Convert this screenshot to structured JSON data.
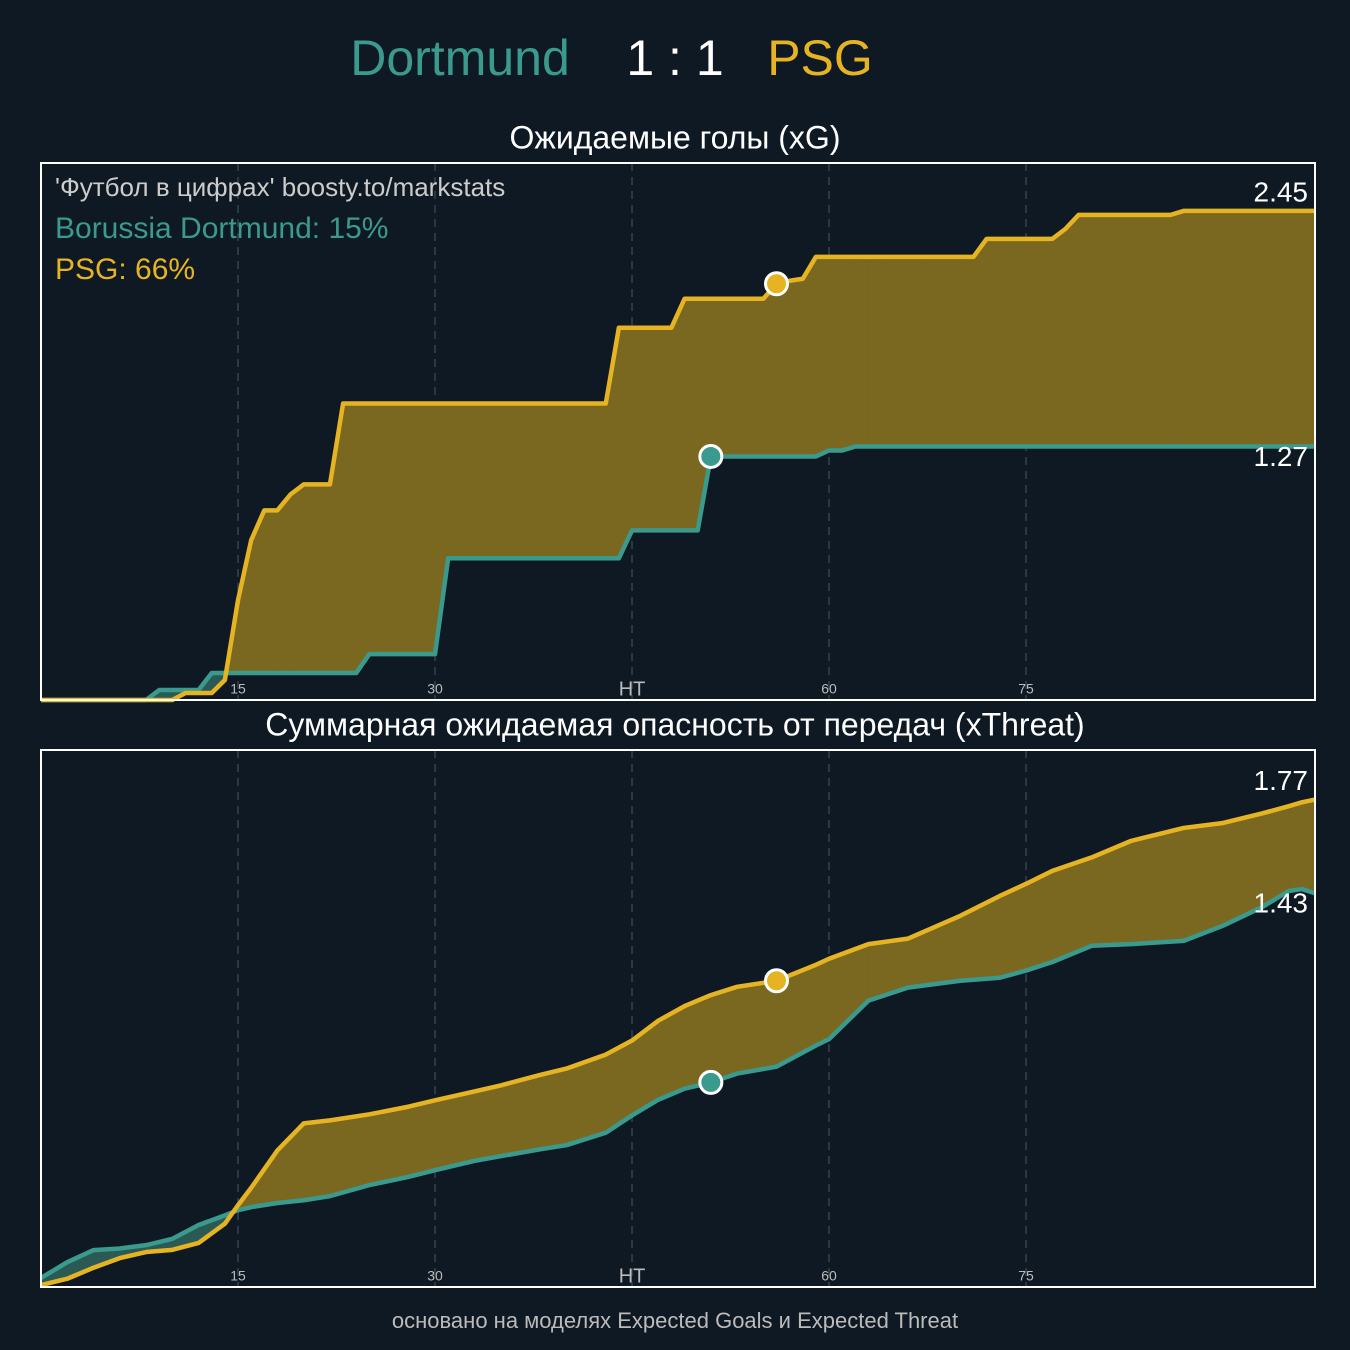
{
  "header": {
    "home": "Dortmund",
    "score": "1 : 1",
    "away": "PSG"
  },
  "footer": "основано на моделях Expected Goals и Expected Threat",
  "chart_data": [
    {
      "type": "line",
      "title": "Ожидаемые голы (xG)",
      "annotation": "'Футбол в цифрах' boosty.to/markstats",
      "xlim": [
        0,
        97
      ],
      "ylim": [
        0,
        2.69
      ],
      "xticks": [
        15,
        30,
        {
          "value": 45,
          "label": "HT"
        },
        60,
        75
      ],
      "grid": true,
      "x": [
        0,
        1,
        2,
        3,
        4,
        5,
        6,
        7,
        8,
        9,
        10,
        11,
        12,
        13,
        14,
        15,
        16,
        17,
        18,
        19,
        20,
        21,
        22,
        23,
        24,
        25,
        26,
        27,
        28,
        29,
        30,
        31,
        32,
        33,
        34,
        35,
        36,
        37,
        38,
        39,
        40,
        41,
        42,
        43,
        44,
        45,
        46,
        47,
        48,
        49,
        50,
        51,
        52,
        53,
        54,
        55,
        56,
        57,
        58,
        59,
        60,
        61,
        62,
        63,
        64,
        65,
        66,
        67,
        68,
        69,
        70,
        71,
        72,
        73,
        74,
        75,
        76,
        77,
        78,
        79,
        80,
        81,
        82,
        83,
        84,
        85,
        86,
        87,
        88,
        89,
        90,
        91,
        92,
        93,
        94,
        95,
        96,
        97
      ],
      "series": [
        {
          "name": "Borussia Dortmund: 15%",
          "color": "#3a9a8e",
          "fill_color": "#2b5a55",
          "values": [
            0,
            0,
            0,
            0,
            0,
            0,
            0,
            0,
            0,
            0.05,
            0.05,
            0.05,
            0.05,
            0.135,
            0.135,
            0.135,
            0.135,
            0.135,
            0.135,
            0.135,
            0.135,
            0.135,
            0.135,
            0.135,
            0.135,
            0.23,
            0.23,
            0.23,
            0.23,
            0.23,
            0.23,
            0.71,
            0.71,
            0.71,
            0.71,
            0.71,
            0.71,
            0.71,
            0.71,
            0.71,
            0.71,
            0.71,
            0.71,
            0.71,
            0.71,
            0.85,
            0.85,
            0.85,
            0.85,
            0.85,
            0.85,
            1.22,
            1.22,
            1.22,
            1.22,
            1.22,
            1.22,
            1.22,
            1.22,
            1.22,
            1.25,
            1.25,
            1.27,
            1.27,
            1.27,
            1.27,
            1.27,
            1.27,
            1.27,
            1.27,
            1.27,
            1.27,
            1.27,
            1.27,
            1.27,
            1.27,
            1.27,
            1.27,
            1.27,
            1.27,
            1.27,
            1.27,
            1.27,
            1.27,
            1.27,
            1.27,
            1.27,
            1.27,
            1.27,
            1.27,
            1.27,
            1.27,
            1.27,
            1.27,
            1.27,
            1.27,
            1.27,
            1.27
          ],
          "goal_x": [
            51
          ],
          "goal_values": [
            1.22
          ]
        },
        {
          "name": "PSG: 66%",
          "color": "#e6b422",
          "fill_color": "#7a6820",
          "values": [
            0,
            0,
            0,
            0,
            0,
            0,
            0,
            0,
            0,
            0,
            0,
            0.035,
            0.035,
            0.035,
            0.1,
            0.5,
            0.8,
            0.95,
            0.95,
            1.03,
            1.08,
            1.08,
            1.08,
            1.485,
            1.485,
            1.485,
            1.485,
            1.485,
            1.485,
            1.485,
            1.485,
            1.485,
            1.485,
            1.485,
            1.485,
            1.485,
            1.485,
            1.485,
            1.485,
            1.485,
            1.485,
            1.485,
            1.485,
            1.485,
            1.865,
            1.865,
            1.865,
            1.865,
            1.865,
            2.01,
            2.01,
            2.01,
            2.01,
            2.01,
            2.01,
            2.01,
            2.085,
            2.1,
            2.11,
            2.22,
            2.22,
            2.22,
            2.22,
            2.22,
            2.22,
            2.22,
            2.22,
            2.22,
            2.22,
            2.22,
            2.22,
            2.22,
            2.31,
            2.31,
            2.31,
            2.31,
            2.31,
            2.31,
            2.36,
            2.43,
            2.43,
            2.43,
            2.43,
            2.43,
            2.43,
            2.43,
            2.43,
            2.45,
            2.45,
            2.45,
            2.45,
            2.45,
            2.45,
            2.45,
            2.45,
            2.45,
            2.45,
            2.45
          ],
          "goal_x": [
            56
          ],
          "goal_values": [
            2.085
          ]
        }
      ]
    },
    {
      "type": "line",
      "title": "Суммарная ожидаемая опасность от передач (xThreat)",
      "xlim": [
        0,
        97
      ],
      "ylim": [
        0,
        1.95
      ],
      "xticks": [
        15,
        30,
        {
          "value": 45,
          "label": "HT"
        },
        60,
        75
      ],
      "grid": true,
      "x": [
        0,
        2,
        4,
        6,
        8,
        10,
        12,
        14,
        15,
        16,
        18,
        20,
        22,
        25,
        28,
        30,
        33,
        35,
        38,
        40,
        43,
        45,
        47,
        49,
        51,
        53,
        56,
        59,
        60,
        63,
        66,
        70,
        73,
        75,
        77,
        80,
        83,
        87,
        90,
        93,
        95,
        96,
        97
      ],
      "series": [
        {
          "color": "#3a9a8e",
          "fill_color": "#2b5a55",
          "values": [
            0.033,
            0.09,
            0.134,
            0.14,
            0.152,
            0.175,
            0.225,
            0.26,
            0.279,
            0.29,
            0.305,
            0.315,
            0.33,
            0.37,
            0.4,
            0.424,
            0.458,
            0.475,
            0.5,
            0.515,
            0.56,
            0.623,
            0.68,
            0.72,
            0.743,
            0.775,
            0.8,
            0.877,
            0.9,
            1.04,
            1.087,
            1.112,
            1.123,
            1.149,
            1.18,
            1.239,
            1.245,
            1.257,
            1.312,
            1.38,
            1.438,
            1.445,
            1.43
          ],
          "goal_x": [
            51
          ],
          "goal_values": [
            0.743
          ]
        },
        {
          "color": "#e6b422",
          "fill_color": "#7a6820",
          "values": [
            0.007,
            0.03,
            0.07,
            0.105,
            0.127,
            0.135,
            0.16,
            0.23,
            0.297,
            0.36,
            0.496,
            0.594,
            0.605,
            0.627,
            0.655,
            0.678,
            0.71,
            0.732,
            0.77,
            0.793,
            0.844,
            0.895,
            0.967,
            1.02,
            1.06,
            1.09,
            1.112,
            1.17,
            1.192,
            1.245,
            1.265,
            1.348,
            1.42,
            1.464,
            1.511,
            1.56,
            1.62,
            1.667,
            1.685,
            1.72,
            1.746,
            1.76,
            1.77
          ],
          "goal_x": [
            56
          ],
          "goal_values": [
            1.112
          ]
        }
      ]
    }
  ]
}
